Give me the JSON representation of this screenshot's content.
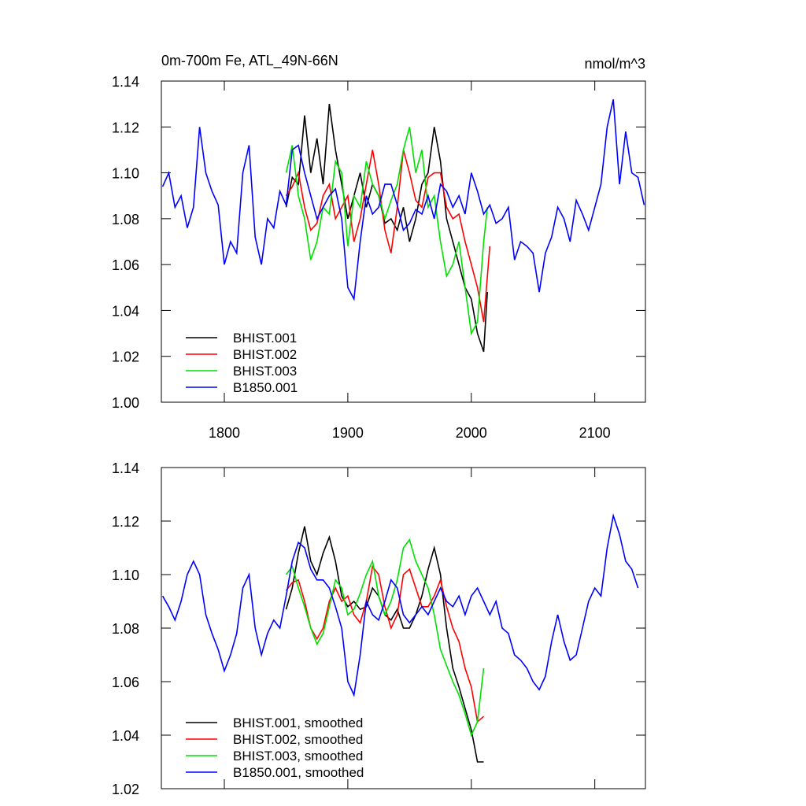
{
  "chart_data": [
    {
      "type": "line",
      "title": "0m-700m Fe, ATL_49N-66N",
      "subtitle": "nmol/m^3",
      "xlim": [
        1749,
        2141
      ],
      "xticks": [
        1800,
        1900,
        2000,
        2100
      ],
      "ylim": [
        1.0,
        1.14
      ],
      "yticks": [
        {
          "value": 1.0,
          "label": "1.00"
        },
        1.02,
        1.04,
        1.06,
        1.08,
        {
          "value": 1.1,
          "label": "1.10"
        },
        1.12,
        1.14
      ],
      "legend": "lower left",
      "series": [
        {
          "name": "BHIST.001",
          "color": "#000000",
          "x": [
            1850,
            1855,
            1860,
            1865,
            1870,
            1875,
            1880,
            1885,
            1890,
            1895,
            1900,
            1905,
            1910,
            1915,
            1920,
            1925,
            1930,
            1935,
            1940,
            1945,
            1950,
            1955,
            1960,
            1965,
            1970,
            1975,
            1980,
            1985,
            1990,
            1995,
            2000,
            2005,
            2010,
            2013
          ],
          "values": [
            1.085,
            1.098,
            1.095,
            1.125,
            1.1,
            1.115,
            1.095,
            1.13,
            1.11,
            1.095,
            1.08,
            1.09,
            1.1,
            1.085,
            1.095,
            1.09,
            1.078,
            1.08,
            1.075,
            1.085,
            1.07,
            1.08,
            1.095,
            1.1,
            1.12,
            1.105,
            1.08,
            1.07,
            1.06,
            1.05,
            1.045,
            1.03,
            1.022,
            1.048
          ]
        },
        {
          "name": "BHIST.002",
          "color": "#ff0000",
          "x": [
            1850,
            1855,
            1860,
            1865,
            1870,
            1875,
            1880,
            1885,
            1890,
            1895,
            1900,
            1905,
            1910,
            1915,
            1920,
            1925,
            1930,
            1935,
            1940,
            1945,
            1950,
            1955,
            1960,
            1965,
            1970,
            1975,
            1980,
            1985,
            1990,
            1995,
            2000,
            2005,
            2010,
            2015
          ],
          "values": [
            1.09,
            1.094,
            1.1,
            1.085,
            1.075,
            1.078,
            1.09,
            1.095,
            1.08,
            1.085,
            1.09,
            1.07,
            1.08,
            1.095,
            1.11,
            1.095,
            1.075,
            1.065,
            1.085,
            1.11,
            1.1,
            1.088,
            1.085,
            1.098,
            1.1,
            1.1,
            1.085,
            1.08,
            1.082,
            1.07,
            1.06,
            1.05,
            1.035,
            1.068
          ]
        },
        {
          "name": "BHIST.003",
          "color": "#00e000",
          "x": [
            1850,
            1855,
            1860,
            1865,
            1870,
            1875,
            1880,
            1885,
            1890,
            1895,
            1900,
            1905,
            1910,
            1915,
            1920,
            1925,
            1930,
            1935,
            1940,
            1945,
            1950,
            1955,
            1960,
            1965,
            1970,
            1975,
            1980,
            1985,
            1990,
            1995,
            2000,
            2005,
            2010,
            2013
          ],
          "values": [
            1.1,
            1.112,
            1.09,
            1.08,
            1.062,
            1.07,
            1.085,
            1.082,
            1.105,
            1.1,
            1.068,
            1.09,
            1.085,
            1.105,
            1.095,
            1.09,
            1.08,
            1.088,
            1.095,
            1.11,
            1.12,
            1.1,
            1.11,
            1.085,
            1.09,
            1.07,
            1.055,
            1.06,
            1.07,
            1.05,
            1.03,
            1.035,
            1.07,
            1.085
          ]
        },
        {
          "name": "B1850.001",
          "color": "#0000ff",
          "x": [
            1750,
            1755,
            1760,
            1765,
            1770,
            1775,
            1780,
            1785,
            1790,
            1795,
            1800,
            1805,
            1810,
            1815,
            1820,
            1825,
            1830,
            1835,
            1840,
            1845,
            1850,
            1855,
            1860,
            1865,
            1870,
            1875,
            1880,
            1885,
            1890,
            1895,
            1900,
            1905,
            1910,
            1915,
            1920,
            1925,
            1930,
            1935,
            1940,
            1945,
            1950,
            1955,
            1960,
            1965,
            1970,
            1975,
            1980,
            1985,
            1990,
            1995,
            2000,
            2005,
            2010,
            2015,
            2020,
            2025,
            2030,
            2035,
            2040,
            2045,
            2050,
            2055,
            2060,
            2065,
            2070,
            2075,
            2080,
            2085,
            2090,
            2095,
            2100,
            2105,
            2110,
            2115,
            2120,
            2125,
            2130,
            2135,
            2140
          ],
          "values": [
            1.094,
            1.1,
            1.085,
            1.09,
            1.076,
            1.085,
            1.12,
            1.1,
            1.092,
            1.086,
            1.06,
            1.07,
            1.065,
            1.1,
            1.112,
            1.072,
            1.06,
            1.08,
            1.076,
            1.092,
            1.086,
            1.11,
            1.112,
            1.1,
            1.09,
            1.08,
            1.085,
            1.09,
            1.093,
            1.08,
            1.05,
            1.045,
            1.07,
            1.09,
            1.082,
            1.085,
            1.095,
            1.095,
            1.086,
            1.075,
            1.078,
            1.084,
            1.082,
            1.09,
            1.08,
            1.095,
            1.092,
            1.085,
            1.09,
            1.082,
            1.1,
            1.092,
            1.082,
            1.086,
            1.078,
            1.08,
            1.085,
            1.062,
            1.07,
            1.068,
            1.065,
            1.048,
            1.065,
            1.072,
            1.085,
            1.08,
            1.07,
            1.088,
            1.082,
            1.075,
            1.085,
            1.095,
            1.12,
            1.132,
            1.095,
            1.118,
            1.1,
            1.098,
            1.086
          ]
        }
      ]
    },
    {
      "type": "line",
      "xlim": [
        1749,
        2141
      ],
      "ylim": [
        1.02,
        1.14
      ],
      "yticks": [
        1.02,
        1.04,
        1.06,
        1.08,
        {
          "value": 1.1,
          "label": "1.10"
        },
        1.12,
        1.14
      ],
      "legend": "lower left",
      "series": [
        {
          "name": "BHIST.001, smoothed",
          "color": "#000000",
          "x": [
            1850,
            1855,
            1860,
            1865,
            1870,
            1875,
            1880,
            1885,
            1890,
            1895,
            1900,
            1905,
            1910,
            1915,
            1920,
            1925,
            1930,
            1935,
            1940,
            1945,
            1950,
            1955,
            1960,
            1965,
            1970,
            1975,
            1980,
            1985,
            1990,
            1995,
            2000,
            2005,
            2010
          ],
          "values": [
            1.087,
            1.095,
            1.108,
            1.118,
            1.105,
            1.1,
            1.108,
            1.114,
            1.105,
            1.092,
            1.088,
            1.09,
            1.087,
            1.088,
            1.095,
            1.092,
            1.085,
            1.083,
            1.087,
            1.08,
            1.08,
            1.085,
            1.092,
            1.102,
            1.11,
            1.1,
            1.08,
            1.065,
            1.058,
            1.05,
            1.042,
            1.03,
            1.03
          ]
        },
        {
          "name": "BHIST.002, smoothed",
          "color": "#ff0000",
          "x": [
            1850,
            1855,
            1860,
            1865,
            1870,
            1875,
            1880,
            1885,
            1890,
            1895,
            1900,
            1905,
            1910,
            1915,
            1920,
            1925,
            1930,
            1935,
            1940,
            1945,
            1950,
            1955,
            1960,
            1965,
            1970,
            1975,
            1980,
            1985,
            1990,
            1995,
            2000,
            2005,
            2010
          ],
          "values": [
            1.094,
            1.097,
            1.098,
            1.09,
            1.08,
            1.076,
            1.08,
            1.09,
            1.095,
            1.09,
            1.092,
            1.085,
            1.082,
            1.09,
            1.103,
            1.1,
            1.088,
            1.08,
            1.085,
            1.1,
            1.102,
            1.095,
            1.088,
            1.088,
            1.092,
            1.098,
            1.088,
            1.08,
            1.075,
            1.065,
            1.058,
            1.045,
            1.047
          ]
        },
        {
          "name": "BHIST.003, smoothed",
          "color": "#00e000",
          "x": [
            1850,
            1855,
            1860,
            1865,
            1870,
            1875,
            1880,
            1885,
            1890,
            1895,
            1900,
            1905,
            1910,
            1915,
            1920,
            1925,
            1930,
            1935,
            1940,
            1945,
            1950,
            1955,
            1960,
            1965,
            1970,
            1975,
            1980,
            1985,
            1990,
            1995,
            2000,
            2005,
            2010
          ],
          "values": [
            1.1,
            1.103,
            1.095,
            1.088,
            1.08,
            1.074,
            1.078,
            1.088,
            1.098,
            1.095,
            1.085,
            1.087,
            1.093,
            1.1,
            1.105,
            1.092,
            1.085,
            1.09,
            1.098,
            1.11,
            1.113,
            1.105,
            1.1,
            1.095,
            1.085,
            1.072,
            1.066,
            1.06,
            1.055,
            1.048,
            1.04,
            1.045,
            1.065
          ]
        },
        {
          "name": "B1850.001, smoothed",
          "color": "#0000ff",
          "x": [
            1750,
            1755,
            1760,
            1765,
            1770,
            1775,
            1780,
            1785,
            1790,
            1795,
            1800,
            1805,
            1810,
            1815,
            1820,
            1825,
            1830,
            1835,
            1840,
            1845,
            1850,
            1855,
            1860,
            1865,
            1870,
            1875,
            1880,
            1885,
            1890,
            1895,
            1900,
            1905,
            1910,
            1915,
            1920,
            1925,
            1930,
            1935,
            1940,
            1945,
            1950,
            1955,
            1960,
            1965,
            1970,
            1975,
            1980,
            1985,
            1990,
            1995,
            2000,
            2005,
            2010,
            2015,
            2020,
            2025,
            2030,
            2035,
            2040,
            2045,
            2050,
            2055,
            2060,
            2065,
            2070,
            2075,
            2080,
            2085,
            2090,
            2095,
            2100,
            2105,
            2110,
            2115,
            2120,
            2125,
            2130,
            2135
          ],
          "values": [
            1.092,
            1.088,
            1.083,
            1.09,
            1.1,
            1.105,
            1.1,
            1.085,
            1.078,
            1.072,
            1.064,
            1.07,
            1.078,
            1.095,
            1.1,
            1.08,
            1.07,
            1.078,
            1.083,
            1.08,
            1.092,
            1.105,
            1.112,
            1.11,
            1.102,
            1.098,
            1.098,
            1.095,
            1.088,
            1.08,
            1.06,
            1.055,
            1.07,
            1.09,
            1.085,
            1.083,
            1.09,
            1.098,
            1.095,
            1.085,
            1.082,
            1.085,
            1.088,
            1.085,
            1.09,
            1.095,
            1.09,
            1.088,
            1.092,
            1.085,
            1.092,
            1.095,
            1.09,
            1.085,
            1.09,
            1.08,
            1.078,
            1.07,
            1.068,
            1.065,
            1.06,
            1.057,
            1.062,
            1.075,
            1.085,
            1.075,
            1.068,
            1.07,
            1.08,
            1.09,
            1.095,
            1.092,
            1.11,
            1.122,
            1.115,
            1.105,
            1.102,
            1.095
          ]
        }
      ]
    }
  ]
}
